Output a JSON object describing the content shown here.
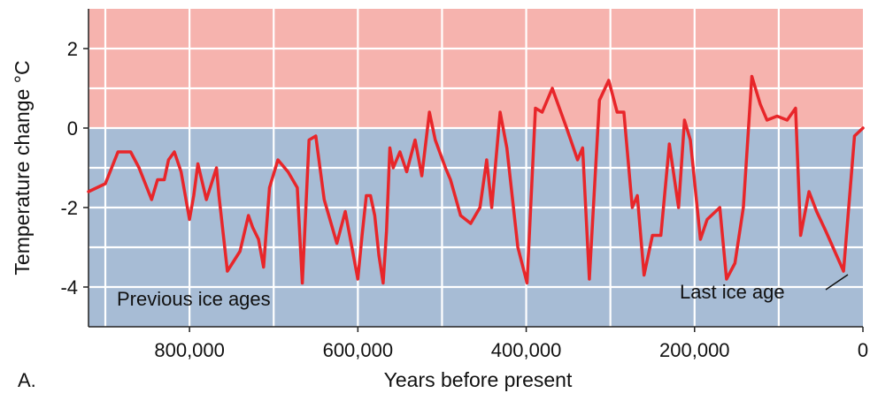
{
  "chart_data": {
    "type": "line",
    "panel_label": "A.",
    "xlabel": "Years before present",
    "ylabel": "Temperature change °C",
    "x_reversed": true,
    "xlim": [
      920000,
      0
    ],
    "ylim": [
      -5,
      3
    ],
    "x_ticks": [
      {
        "value": 800000,
        "label": "800,000"
      },
      {
        "value": 600000,
        "label": "600,000"
      },
      {
        "value": 400000,
        "label": "400,000"
      },
      {
        "value": 200000,
        "label": "200,000"
      },
      {
        "value": 0,
        "label": "0"
      }
    ],
    "y_ticks": [
      {
        "value": 2,
        "label": "2"
      },
      {
        "value": 0,
        "label": "0"
      },
      {
        "value": -2,
        "label": "-2"
      },
      {
        "value": -4,
        "label": "-4"
      }
    ],
    "grid": true,
    "background_zones": [
      {
        "from": 0,
        "to": 3,
        "color": "#f6b3ae"
      },
      {
        "from": -5,
        "to": 0,
        "color": "#a7bcd5"
      }
    ],
    "line_color": "#e8262a",
    "annotations": [
      {
        "text": "Previous ice ages"
      },
      {
        "text": "Last ice age"
      }
    ],
    "series": [
      {
        "x": [
          920000,
          900000,
          885000,
          870000,
          860000,
          845000,
          838000,
          830000,
          825000,
          818000,
          810000,
          800000,
          795000,
          790000,
          780000,
          768000,
          765000,
          755000,
          740000,
          730000,
          725000,
          718000,
          712000,
          705000,
          695000,
          683000,
          672000,
          666000,
          658000,
          650000,
          640000,
          625000,
          615000,
          600000,
          595000,
          590000,
          585000,
          580000,
          575000,
          570000,
          566000,
          562000,
          558000,
          550000,
          542000,
          532000,
          524000,
          515000,
          508000,
          496000,
          490000,
          478000,
          466000,
          455000,
          447000,
          441000,
          431000,
          423000,
          410000,
          399000,
          389000,
          381000,
          369000,
          352000,
          339000,
          333000,
          325000,
          313000,
          302000,
          292000,
          284000,
          274000,
          268000,
          260000,
          250000,
          240000,
          230000,
          219000,
          212000,
          205000,
          193000,
          185000,
          170000,
          162000,
          152000,
          142000,
          132000,
          122000,
          114000,
          102000,
          90000,
          80000,
          74000,
          64000,
          55000,
          44000,
          23000,
          10000,
          0
        ],
        "y": [
          -1.6,
          -1.4,
          -0.6,
          -0.6,
          -1.0,
          -1.8,
          -1.3,
          -1.3,
          -0.8,
          -0.6,
          -1.1,
          -2.3,
          -1.7,
          -0.9,
          -1.8,
          -1.0,
          -1.7,
          -3.6,
          -3.1,
          -2.2,
          -2.5,
          -2.8,
          -3.5,
          -1.5,
          -0.8,
          -1.1,
          -1.5,
          -3.9,
          -0.3,
          -0.2,
          -1.8,
          -2.9,
          -2.1,
          -3.8,
          -2.7,
          -1.7,
          -1.7,
          -2.2,
          -3.2,
          -3.9,
          -2.6,
          -0.5,
          -1.0,
          -0.6,
          -1.1,
          -0.3,
          -1.2,
          0.4,
          -0.3,
          -1.0,
          -1.3,
          -2.2,
          -2.4,
          -2.0,
          -0.8,
          -2.0,
          0.4,
          -0.5,
          -3.0,
          -3.9,
          0.5,
          0.4,
          1.0,
          0.0,
          -0.8,
          -0.5,
          -3.8,
          0.7,
          1.2,
          0.4,
          0.4,
          -2.0,
          -1.7,
          -3.7,
          -2.7,
          -2.7,
          -0.4,
          -2.0,
          0.2,
          -0.3,
          -2.8,
          -2.3,
          -2.0,
          -3.8,
          -3.4,
          -2.0,
          1.3,
          0.6,
          0.2,
          0.3,
          0.2,
          0.5,
          -2.7,
          -1.6,
          -2.1,
          -2.6,
          -3.6,
          -0.2,
          0.0
        ]
      }
    ]
  }
}
